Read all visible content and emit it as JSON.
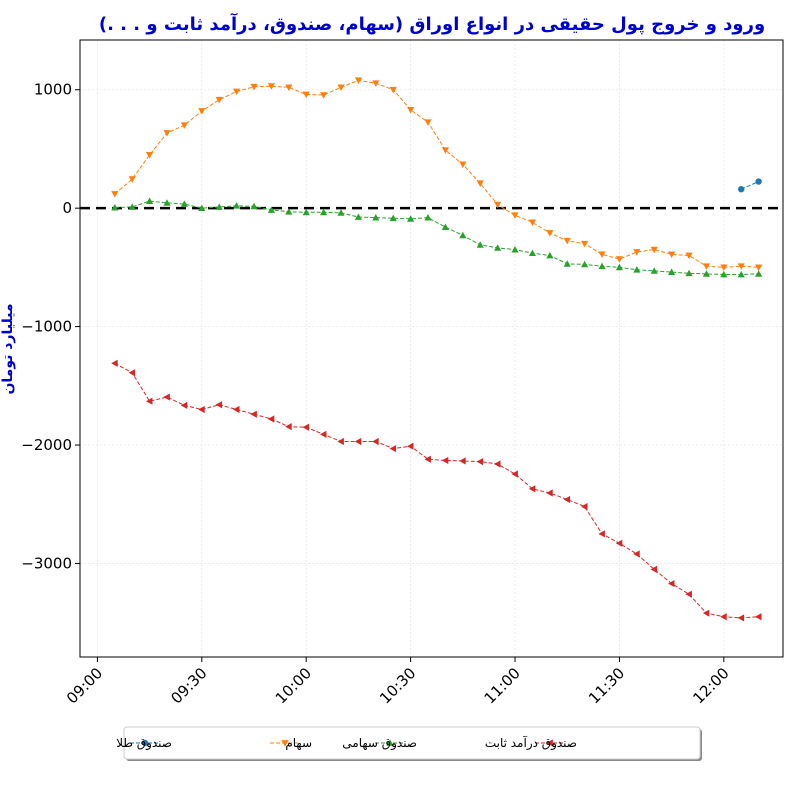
{
  "chart_data": {
    "type": "line",
    "title": "ورود و خروج پول حقیقی در انواع اوراق (سهام، صندوق، درآمد ثابت و . . .)",
    "ylabel": "میلیارد تومان",
    "xlabel": "",
    "x_ticks": [
      "09:00",
      "09:30",
      "10:00",
      "10:30",
      "11:00",
      "11:30",
      "12:00"
    ],
    "y_ticks": [
      1000,
      0,
      -1000,
      -2000,
      -3000
    ],
    "y_tick_labels": [
      "1000",
      "0",
      "−1000",
      "−2000",
      "−3000"
    ],
    "xlim": [
      "08:55",
      "12:17"
    ],
    "ylim": [
      -3790,
      1420
    ],
    "grid": true,
    "zero_line": true,
    "legend_position": "bottom-center",
    "series": [
      {
        "name": "صندوق طلا",
        "color": "#1f77b4",
        "marker": "circle",
        "x": [
          "12:05",
          "12:10"
        ],
        "y": [
          160,
          225
        ]
      },
      {
        "name": "سهام",
        "color": "#ff7f0e",
        "marker": "triangle-down",
        "x": [
          "09:05",
          "09:10",
          "09:15",
          "09:20",
          "09:25",
          "09:30",
          "09:35",
          "09:40",
          "09:45",
          "09:50",
          "09:55",
          "10:00",
          "10:05",
          "10:10",
          "10:15",
          "10:20",
          "10:25",
          "10:30",
          "10:35",
          "10:40",
          "10:45",
          "10:50",
          "10:55",
          "11:00",
          "11:05",
          "11:10",
          "11:15",
          "11:20",
          "11:25",
          "11:30",
          "11:35",
          "11:40",
          "11:45",
          "11:50",
          "11:55",
          "12:00",
          "12:05",
          "12:10"
        ],
        "y": [
          120,
          245,
          450,
          635,
          700,
          820,
          915,
          985,
          1025,
          1030,
          1020,
          960,
          955,
          1020,
          1080,
          1055,
          1000,
          830,
          725,
          490,
          370,
          210,
          30,
          -60,
          -120,
          -210,
          -275,
          -300,
          -390,
          -430,
          -370,
          -350,
          -390,
          -400,
          -490,
          -500,
          -490,
          -500
        ]
      },
      {
        "name": "صندوق سهامی",
        "color": "#2ca02c",
        "marker": "triangle-up",
        "x": [
          "09:05",
          "09:10",
          "09:15",
          "09:20",
          "09:25",
          "09:30",
          "09:35",
          "09:40",
          "09:45",
          "09:50",
          "09:55",
          "10:00",
          "10:05",
          "10:10",
          "10:15",
          "10:20",
          "10:25",
          "10:30",
          "10:35",
          "10:40",
          "10:45",
          "10:50",
          "10:55",
          "11:00",
          "11:05",
          "11:10",
          "11:15",
          "11:20",
          "11:25",
          "11:30",
          "11:35",
          "11:40",
          "11:45",
          "11:50",
          "11:55",
          "12:00",
          "12:05",
          "12:10"
        ],
        "y": [
          5,
          10,
          60,
          45,
          35,
          0,
          10,
          20,
          15,
          -15,
          -30,
          -35,
          -35,
          -40,
          -75,
          -80,
          -85,
          -90,
          -80,
          -160,
          -230,
          -310,
          -335,
          -350,
          -380,
          -400,
          -470,
          -475,
          -490,
          -500,
          -520,
          -530,
          -540,
          -550,
          -555,
          -560,
          -560,
          -555
        ]
      },
      {
        "name": "صندوق درآمد ثابت",
        "color": "#d62728",
        "marker": "triangle-left",
        "x": [
          "09:05",
          "09:10",
          "09:15",
          "09:20",
          "09:25",
          "09:30",
          "09:35",
          "09:40",
          "09:45",
          "09:50",
          "09:55",
          "10:00",
          "10:05",
          "10:10",
          "10:15",
          "10:20",
          "10:25",
          "10:30",
          "10:35",
          "10:40",
          "10:45",
          "10:50",
          "10:55",
          "11:00",
          "11:05",
          "11:10",
          "11:15",
          "11:20",
          "11:25",
          "11:30",
          "11:35",
          "11:40",
          "11:45",
          "11:50",
          "11:55",
          "12:00",
          "12:05",
          "12:10"
        ],
        "y": [
          -1310,
          -1390,
          -1630,
          -1595,
          -1665,
          -1700,
          -1660,
          -1700,
          -1740,
          -1780,
          -1845,
          -1850,
          -1910,
          -1970,
          -1970,
          -1970,
          -2030,
          -2010,
          -2120,
          -2130,
          -2135,
          -2140,
          -2160,
          -2245,
          -2370,
          -2405,
          -2460,
          -2520,
          -2750,
          -2830,
          -2920,
          -3050,
          -3170,
          -3260,
          -3420,
          -3450,
          -3460,
          -3450
        ]
      }
    ]
  }
}
